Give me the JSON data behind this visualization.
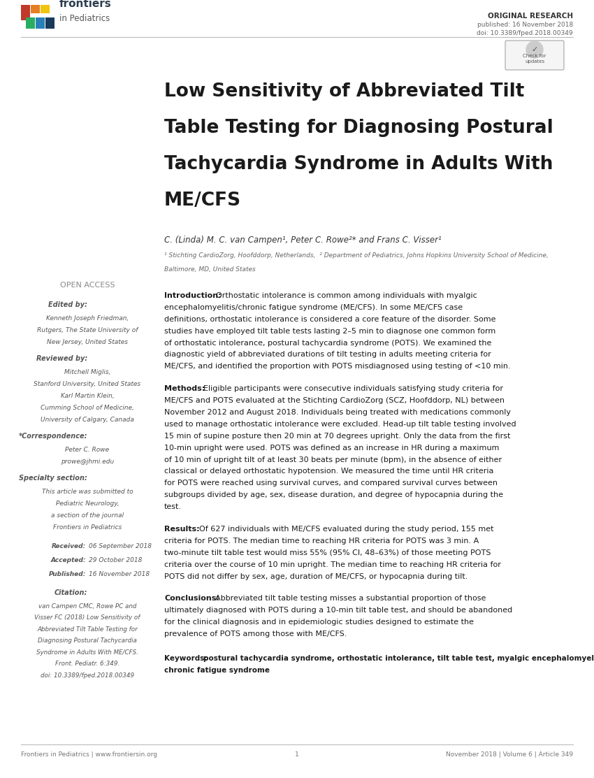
{
  "bg_color": "#ffffff",
  "original_research_text": "ORIGINAL RESEARCH",
  "published_text": "published: 16 November 2018",
  "doi_text": "doi: 10.3389/fped.2018.00349",
  "title_line1": "Low Sensitivity of Abbreviated Tilt",
  "title_line2": "Table Testing for Diagnosing Postural",
  "title_line3": "Tachycardia Syndrome in Adults With",
  "title_line4": "ME/CFS",
  "authors": "C. (Linda) M. C. van Campen¹, Peter C. Rowe²* and Frans C. Visser¹",
  "affil1": "¹ Stichting CardioZorg, Hoofddorp, Netherlands,  ² Department of Pediatrics, Johns Hopkins University School of Medicine,",
  "affil2": "Baltimore, MD, United States",
  "open_access_label": "OPEN ACCESS",
  "edited_by_label": "Edited by:",
  "edited_by_line1": "Kenneth Joseph Friedman,",
  "edited_by_line2": "Rutgers, The State University of",
  "edited_by_line3": "New Jersey, United States",
  "reviewed_by_label": "Reviewed by:",
  "reviewed_by_line1": "Mitchell Miglis,",
  "reviewed_by_line2": "Stanford University, United States",
  "reviewed_by_line3": "Karl Martin Klein,",
  "reviewed_by_line4": "Cumming School of Medicine,",
  "reviewed_by_line5": "University of Calgary, Canada",
  "correspondence_label": "*Correspondence:",
  "correspondence_line1": "Peter C. Rowe",
  "correspondence_line2": "prowe@jhmi.edu",
  "specialty_label": "Specialty section:",
  "specialty_line1": "This article was submitted to",
  "specialty_line2": "Pediatric Neurology,",
  "specialty_line3": "a section of the journal",
  "specialty_line4": "Frontiers in Pediatrics",
  "received_label": "Received:",
  "received_val": "06 September 2018",
  "accepted_label": "Accepted:",
  "accepted_val": "29 October 2018",
  "published_label": "Published:",
  "published_val": "16 November 2018",
  "citation_label": "Citation:",
  "citation_line1": "van Campen CMC, Rowe PC and",
  "citation_line2": "Visser FC (2018) Low Sensitivity of",
  "citation_line3": "Abbreviated Tilt Table Testing for",
  "citation_line4": "Diagnosing Postural Tachycardia",
  "citation_line5": "Syndrome in Adults With ME/CFS.",
  "citation_line6": "Front. Pediatr. 6:349.",
  "citation_line7": "doi: 10.3389/fped.2018.00349",
  "intro_label": "Introduction:",
  "intro_body": "Orthostatic intolerance is common among individuals with myalgic encephalomyelitis/chronic fatigue syndrome (ME/CFS). In some ME/CFS case definitions, orthostatic intolerance is considered a core feature of the disorder. Some studies have employed tilt table tests lasting 2–5 min to diagnose one common form of orthostatic intolerance, postural tachycardia syndrome (POTS). We examined the diagnostic yield of abbreviated durations of tilt testing in adults meeting criteria for ME/CFS, and identified the proportion with POTS misdiagnosed using testing of <10 min.",
  "methods_label": "Methods:",
  "methods_body": "Eligible participants were consecutive individuals satisfying study criteria for ME/CFS and POTS evaluated at the Stichting CardioZorg (SCZ, Hoofddorp, NL) between November 2012 and August 2018. Individuals being treated with medications commonly used to manage orthostatic intolerance were excluded. Head-up tilt table testing involved 15 min of supine posture then 20 min at 70 degrees upright. Only the data from the first 10-min upright were used. POTS was defined as an increase in HR during a maximum of 10 min of upright tilt of at least 30 beats per minute (bpm), in the absence of either classical or delayed orthostatic hypotension. We measured the time until HR criteria for POTS were reached using survival curves, and compared survival curves between subgroups divided by age, sex, disease duration, and degree of hypocapnia during the test.",
  "results_label": "Results:",
  "results_body": "Of 627 individuals with ME/CFS evaluated during the study period, 155 met criteria for POTS. The median time to reaching HR criteria for POTS was 3 min. A two-minute tilt table test would miss 55% (95% CI, 48–63%) of those meeting POTS criteria over the course of 10 min upright. The median time to reaching HR criteria for POTS did not differ by sex, age, duration of ME/CFS, or hypocapnia during tilt.",
  "conclusions_label": "Conclusions:",
  "conclusions_body": "Abbreviated tilt table testing misses a substantial proportion of those ultimately diagnosed with POTS during a 10-min tilt table test, and should be abandoned for the clinical diagnosis and in epidemiologic studies designed to estimate the prevalence of POTS among those with ME/CFS.",
  "keywords_label": "Keywords:",
  "keywords_body": "postural tachycardia syndrome, orthostatic intolerance, tilt table test, myalgic encephalomyelitis, chronic fatigue syndrome",
  "footer_left": "Frontiers in Pediatrics | www.frontiersin.org",
  "footer_center": "1",
  "footer_right": "November 2018 | Volume 6 | Article 349",
  "text_color": "#1a1a1a",
  "sidebar_text_color": "#555555",
  "title_color": "#1a1a1a"
}
